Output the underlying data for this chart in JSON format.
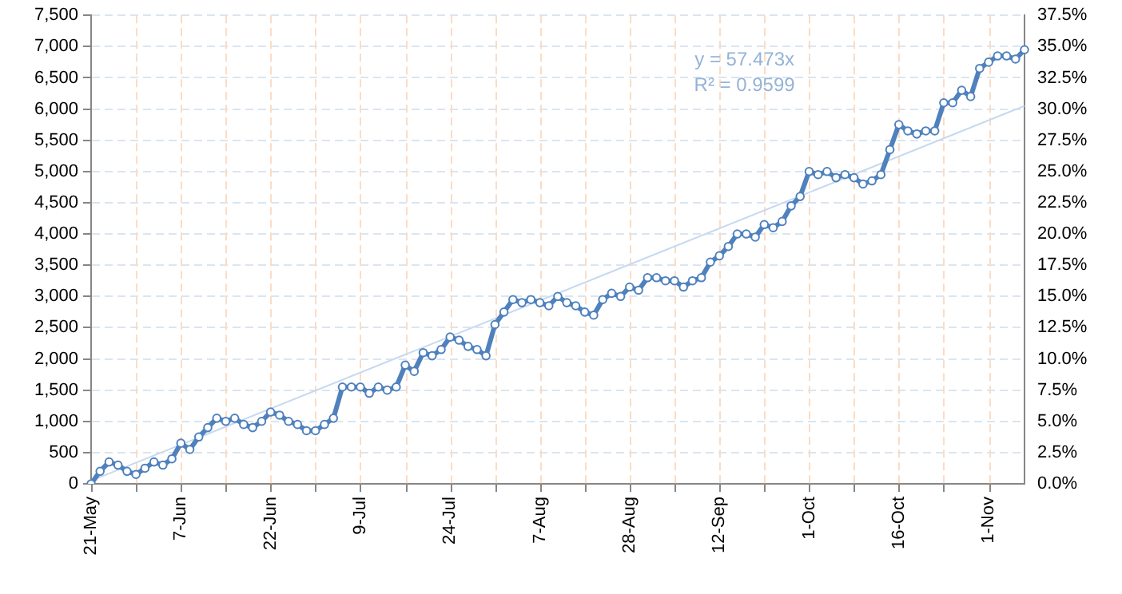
{
  "chart_data": {
    "type": "line",
    "categories": [
      "21-May",
      null,
      null,
      null,
      null,
      null,
      null,
      null,
      null,
      null,
      "7-Jun",
      null,
      null,
      null,
      null,
      null,
      null,
      null,
      null,
      null,
      "22-Jun",
      null,
      null,
      null,
      null,
      null,
      null,
      null,
      null,
      null,
      "9-Jul",
      null,
      null,
      null,
      null,
      null,
      null,
      null,
      null,
      null,
      "24-Jul",
      null,
      null,
      null,
      null,
      null,
      null,
      null,
      null,
      null,
      "7-Aug",
      null,
      null,
      null,
      null,
      null,
      null,
      null,
      null,
      null,
      "28-Aug",
      null,
      null,
      null,
      null,
      null,
      null,
      null,
      null,
      null,
      "12-Sep",
      null,
      null,
      null,
      null,
      null,
      null,
      null,
      null,
      null,
      "1-Oct",
      null,
      null,
      null,
      null,
      null,
      null,
      null,
      null,
      null,
      "16-Oct",
      null,
      null,
      null,
      null,
      null,
      null,
      null,
      null,
      null,
      "1-Nov",
      null,
      null,
      null,
      null
    ],
    "series": [
      {
        "color": "#4f81bd",
        "marker": "circle",
        "values": [
          0,
          200,
          350,
          300,
          200,
          150,
          250,
          350,
          300,
          400,
          650,
          550,
          750,
          900,
          1050,
          1000,
          1050,
          950,
          900,
          1000,
          1150,
          1100,
          1000,
          950,
          850,
          850,
          950,
          1050,
          1550,
          1550,
          1550,
          1450,
          1550,
          1500,
          1550,
          1900,
          1800,
          2100,
          2050,
          2150,
          2350,
          2300,
          2200,
          2150,
          2050,
          2550,
          2750,
          2950,
          2900,
          2950,
          2900,
          2850,
          3000,
          2900,
          2850,
          2750,
          2700,
          2950,
          3050,
          3000,
          3150,
          3100,
          3300,
          3300,
          3250,
          3250,
          3150,
          3250,
          3300,
          3550,
          3650,
          3800,
          4000,
          4000,
          3950,
          4150,
          4100,
          4200,
          4450,
          4600,
          5000,
          4950,
          5000,
          4900,
          4950,
          4900,
          4800,
          4850,
          4950,
          5350,
          5750,
          5650,
          5600,
          5650,
          5650,
          6100,
          6100,
          6300,
          6200,
          6650,
          6750,
          6850,
          6850,
          6800,
          6950
        ]
      },
      {
        "color": "#c6d9f1",
        "marker": "none",
        "values": [
          50,
          null,
          null,
          null,
          null,
          null,
          null,
          null,
          null,
          null,
          null,
          null,
          null,
          null,
          null,
          null,
          null,
          null,
          null,
          null,
          null,
          null,
          null,
          null,
          null,
          null,
          null,
          null,
          null,
          null,
          null,
          null,
          null,
          null,
          null,
          null,
          null,
          null,
          null,
          null,
          null,
          null,
          null,
          null,
          null,
          null,
          null,
          null,
          null,
          null,
          null,
          null,
          null,
          null,
          null,
          null,
          null,
          null,
          null,
          null,
          null,
          null,
          null,
          null,
          null,
          null,
          null,
          null,
          null,
          null,
          null,
          null,
          null,
          null,
          null,
          null,
          null,
          null,
          null,
          null,
          null,
          null,
          null,
          null,
          null,
          null,
          null,
          null,
          null,
          null,
          null,
          null,
          null,
          null,
          null,
          null,
          null,
          null,
          null,
          null,
          null,
          null,
          null,
          null,
          6050
        ]
      }
    ],
    "ylim": [
      0,
      7500
    ],
    "yticks": [
      0,
      500,
      {
        "value": 1000,
        "label": "1,000"
      },
      {
        "value": 1500,
        "label": "1,500"
      },
      {
        "value": 2000,
        "label": "2,000"
      },
      {
        "value": 2500,
        "label": "2,500"
      },
      {
        "value": 3000,
        "label": "3,000"
      },
      {
        "value": 3500,
        "label": "3,500"
      },
      {
        "value": 4000,
        "label": "4,000"
      },
      {
        "value": 4500,
        "label": "4,500"
      },
      {
        "value": 5000,
        "label": "5,000"
      },
      {
        "value": 5500,
        "label": "5,500"
      },
      {
        "value": 6000,
        "label": "6,000"
      },
      {
        "value": 6500,
        "label": "6,500"
      },
      {
        "value": 7000,
        "label": "7,000"
      },
      {
        "value": 7500,
        "label": "7,500"
      }
    ],
    "y2lim": [
      0,
      37.5
    ],
    "y2ticks": [
      {
        "value": 0,
        "label": "0.0%"
      },
      {
        "value": 2.5,
        "label": "2.5%"
      },
      {
        "value": 5,
        "label": "5.0%"
      },
      {
        "value": 7.5,
        "label": "7.5%"
      },
      {
        "value": 10,
        "label": "10.0%"
      },
      {
        "value": 12.5,
        "label": "12.5%"
      },
      {
        "value": 15,
        "label": "15.0%"
      },
      {
        "value": 17.5,
        "label": "17.5%"
      },
      {
        "value": 20,
        "label": "20.0%"
      },
      {
        "value": 22.5,
        "label": "22.5%"
      },
      {
        "value": 25,
        "label": "25.0%"
      },
      {
        "value": 27.5,
        "label": "27.5%"
      },
      {
        "value": 30,
        "label": "30.0%"
      },
      {
        "value": 32.5,
        "label": "32.5%"
      },
      {
        "value": 35,
        "label": "35.0%"
      },
      {
        "value": 37.5,
        "label": "37.5%"
      }
    ],
    "grid": true,
    "legend": false,
    "annotations": [
      "y = 57.473x",
      "R² = 0.9599"
    ]
  }
}
